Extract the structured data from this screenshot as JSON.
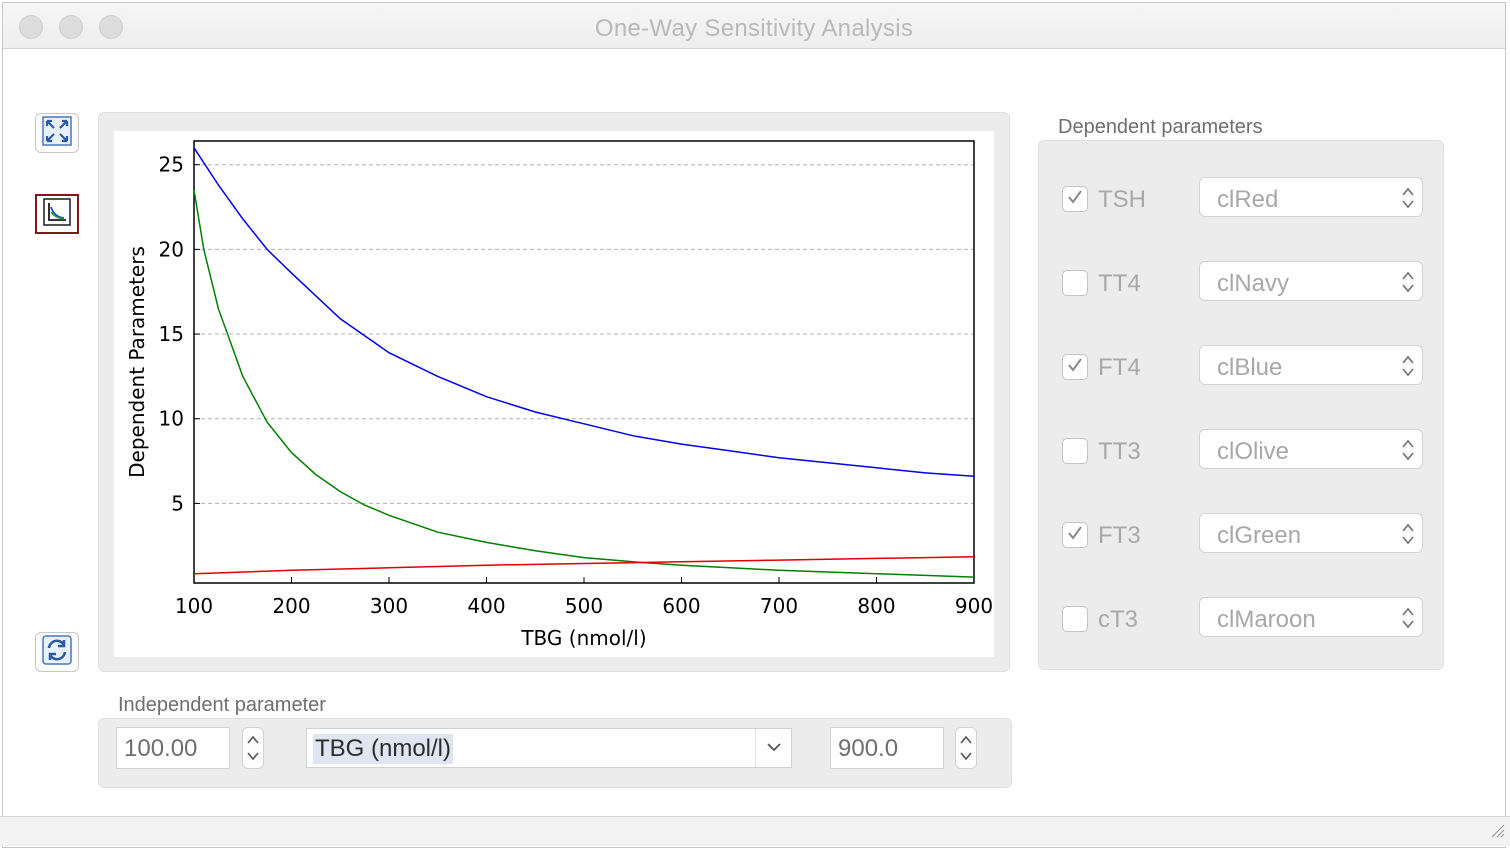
{
  "window": {
    "title": "One-Way Sensitivity Analysis"
  },
  "toolbar": {
    "buttons": [
      "fullscreen-icon",
      "chart-icon",
      "refresh-icon"
    ],
    "selected": "chart-icon"
  },
  "dependent_panel": {
    "title": "Dependent parameters",
    "items": [
      {
        "label": "TSH",
        "checked": true,
        "color": "clRed"
      },
      {
        "label": "TT4",
        "checked": false,
        "color": "clNavy"
      },
      {
        "label": "FT4",
        "checked": true,
        "color": "clBlue"
      },
      {
        "label": "TT3",
        "checked": false,
        "color": "clOlive"
      },
      {
        "label": "FT3",
        "checked": true,
        "color": "clGreen"
      },
      {
        "label": "cT3",
        "checked": false,
        "color": "clMaroon"
      }
    ]
  },
  "independent_panel": {
    "title": "Independent parameter",
    "min_value": "100.00",
    "parameter": "TBG (nmol/l)",
    "max_value": "900.0"
  },
  "chart_data": {
    "type": "line",
    "xlabel": "TBG (nmol/l)",
    "ylabel": "Dependent Parameters",
    "xlim": [
      100,
      900
    ],
    "ylim": [
      0.3,
      26.4
    ],
    "xticks": [
      100,
      200,
      300,
      400,
      500,
      600,
      700,
      800,
      900
    ],
    "yticks": [
      5,
      10,
      15,
      20,
      25
    ],
    "grid": "horizontal dashed",
    "series": [
      {
        "color": "#0000ee",
        "x": [
          100,
          125,
          150,
          175,
          200,
          250,
          300,
          350,
          400,
          450,
          500,
          550,
          600,
          650,
          700,
          750,
          800,
          850,
          900
        ],
        "y": [
          26.0,
          23.8,
          21.8,
          20.0,
          18.6,
          15.9,
          13.9,
          12.5,
          11.3,
          10.4,
          9.7,
          9.0,
          8.5,
          8.1,
          7.7,
          7.4,
          7.1,
          6.8,
          6.6
        ]
      },
      {
        "color": "#008000",
        "x": [
          100,
          110,
          125,
          150,
          175,
          200,
          225,
          250,
          275,
          300,
          350,
          400,
          450,
          500,
          550,
          600,
          650,
          700,
          750,
          800,
          850,
          900
        ],
        "y": [
          23.5,
          20.0,
          16.5,
          12.5,
          9.8,
          8.0,
          6.7,
          5.7,
          4.9,
          4.3,
          3.3,
          2.7,
          2.2,
          1.8,
          1.55,
          1.35,
          1.2,
          1.05,
          0.95,
          0.85,
          0.75,
          0.65
        ]
      },
      {
        "color": "#e00000",
        "x": [
          100,
          200,
          300,
          400,
          500,
          600,
          700,
          800,
          900
        ],
        "y": [
          0.85,
          1.05,
          1.2,
          1.35,
          1.45,
          1.55,
          1.65,
          1.75,
          1.85
        ]
      }
    ]
  }
}
